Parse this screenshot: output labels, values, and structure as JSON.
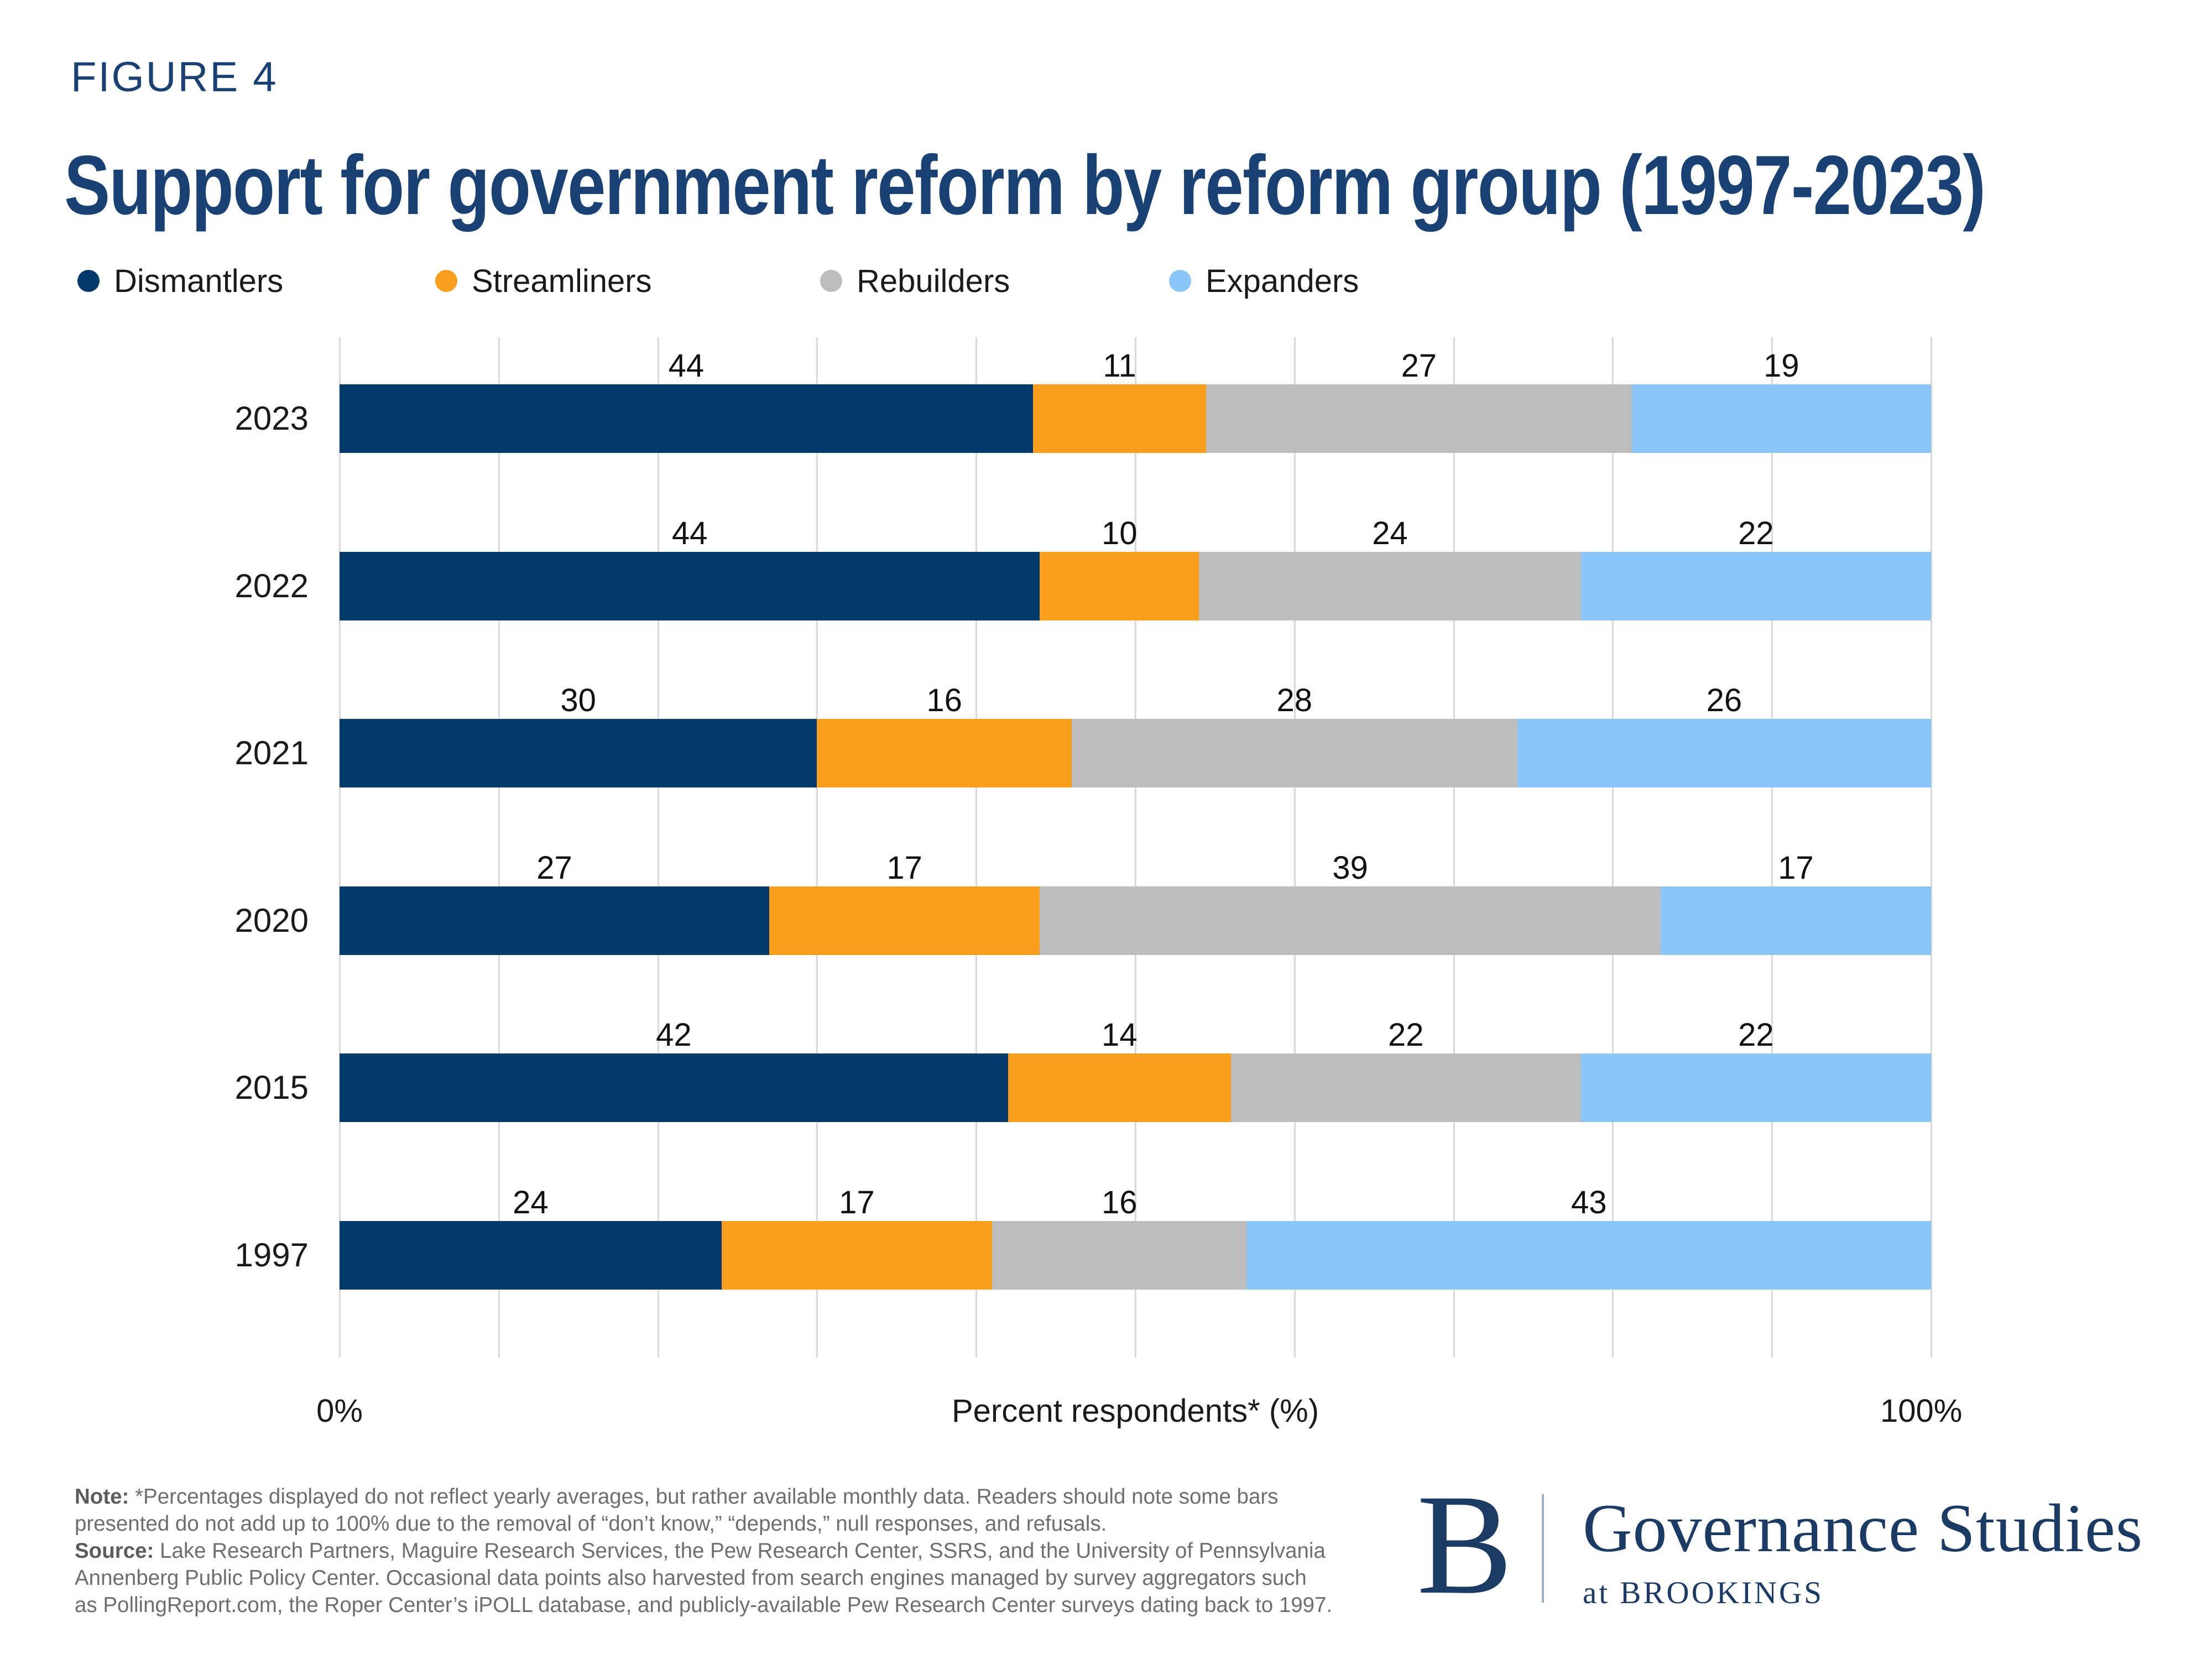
{
  "figure_label": "FIGURE 4",
  "title": "Support for government reform by reform group (1997-2023)",
  "colors": {
    "title_navy": "#1A4173",
    "dismantlers": "#033A6B",
    "streamliners": "#FA9E1F",
    "rebuilders": "#BDBDBD",
    "expanders": "#8AC6F8",
    "gridline": "#DADADA",
    "note_gray": "#6E6E6E",
    "logo_navy": "#1B3A64"
  },
  "legend": [
    {
      "label": "Dismantlers",
      "color": "#033A6B",
      "x": 140
    },
    {
      "label": "Streamliners",
      "color": "#FA9E1F",
      "x": 787
    },
    {
      "label": "Rebuilders",
      "color": "#BDBDBD",
      "x": 1483
    },
    {
      "label": "Expanders",
      "color": "#8AC6F8",
      "x": 2114
    }
  ],
  "chart_data": {
    "type": "bar",
    "stacked": true,
    "orientation": "horizontal",
    "categories": [
      "2023",
      "2022",
      "2021",
      "2020",
      "2015",
      "1997"
    ],
    "series": [
      {
        "name": "Dismantlers",
        "color": "#033A6B",
        "values": [
          44,
          44,
          30,
          27,
          42,
          24
        ]
      },
      {
        "name": "Streamliners",
        "color": "#FA9E1F",
        "values": [
          11,
          10,
          16,
          17,
          14,
          17
        ]
      },
      {
        "name": "Rebuilders",
        "color": "#BDBDBD",
        "values": [
          27,
          24,
          28,
          39,
          22,
          16
        ]
      },
      {
        "name": "Expanders",
        "color": "#8AC6F8",
        "values": [
          19,
          22,
          26,
          17,
          22,
          43
        ]
      }
    ],
    "xlabel": "Percent respondents* (%)",
    "xlim": [
      0,
      100
    ],
    "x_tick_labels": [
      "0%",
      "100%"
    ],
    "grid": "vertical gridlines every 10%",
    "legend_position": "top",
    "value_labels": "above each segment"
  },
  "x_axis": {
    "min_label": "0%",
    "title": "Percent respondents* (%)",
    "max_label": "100%"
  },
  "notes": {
    "note_prefix": "Note:",
    "note_text": "*Percentages displayed do not reflect yearly averages, but rather available monthly data. Readers should note some bars\npresented do not add up to 100% due to the removal of “don’t know,” “depends,” null responses, and refusals.",
    "source_prefix": "Source:",
    "source_text": "Lake Research Partners, Maguire Research Services, the Pew Research Center, SSRS, and the University of Pennsylvania\nAnnenberg Public Policy Center. Occasional data points also harvested from search engines managed by survey aggregators such\nas PollingReport.com, the Roper Center’s iPOLL database, and publicly-available Pew Research Center surveys dating back to 1997."
  },
  "logo": {
    "b": "B",
    "name": "Governance Studies",
    "sub": "at BROOKINGS"
  }
}
